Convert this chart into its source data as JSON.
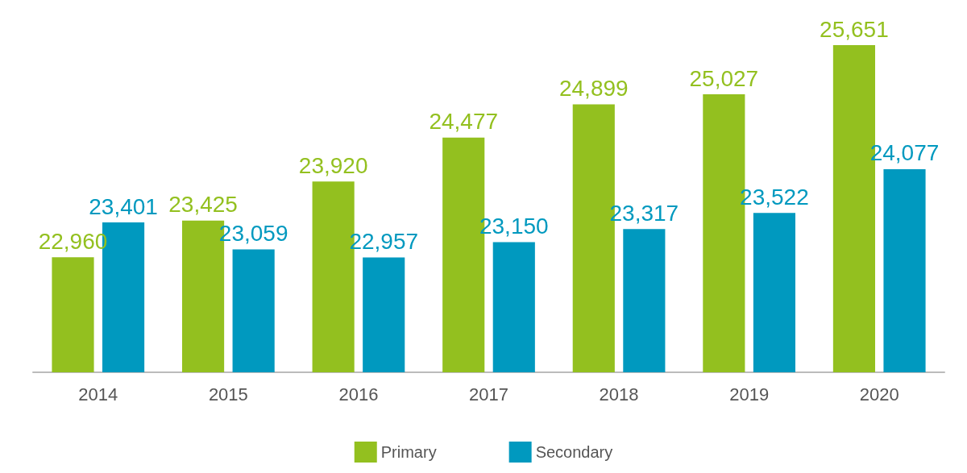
{
  "chart_data": {
    "type": "bar",
    "categories": [
      "2014",
      "2015",
      "2016",
      "2017",
      "2018",
      "2019",
      "2020"
    ],
    "series": [
      {
        "name": "Primary",
        "color": "#93c01f",
        "values": [
          22960,
          23425,
          23920,
          24477,
          24899,
          25027,
          25651
        ],
        "value_labels": [
          "22,960",
          "23,425",
          "23,920",
          "24,477",
          "24,899",
          "25,027",
          "25,651"
        ]
      },
      {
        "name": "Secondary",
        "color": "#0099bf",
        "values": [
          23401,
          23059,
          22957,
          23150,
          23317,
          23522,
          24077
        ],
        "value_labels": [
          "23,401",
          "23,059",
          "22,957",
          "23,150",
          "23,317",
          "23,522",
          "24,077"
        ]
      }
    ],
    "ylim": [
      21500,
      25651
    ],
    "legend": "bottom",
    "tick_labels": "x"
  }
}
